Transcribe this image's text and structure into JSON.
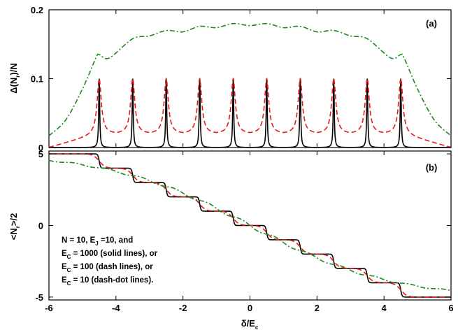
{
  "chart_data": [
    {
      "type": "line",
      "panel_label": "(a)",
      "ylabel_main": "Δ(N",
      "ylabel_sub": "r",
      "ylabel_tail": ")/N",
      "xlim": [
        -6,
        6
      ],
      "ylim": [
        0,
        0.2
      ],
      "yticks": [
        "0",
        "0.1",
        "0.2"
      ],
      "peak_positions": [
        -4.5,
        -3.5,
        -2.5,
        -1.5,
        -0.5,
        0.5,
        1.5,
        2.5,
        3.5,
        4.5
      ],
      "series": [
        {
          "style": "solid",
          "color": "#000000",
          "peak_height": 0.1,
          "baseline": 0.0
        },
        {
          "style": "dash",
          "color": "#e41a1c",
          "peak_height": 0.1,
          "baseline": 0.02
        },
        {
          "style": "dash-dot",
          "color": "#1b8a1b",
          "x": [
            -6,
            -5.5,
            -5,
            -4.6,
            -4.5,
            -4.2,
            -3.5,
            -3,
            -2.5,
            -2,
            -1.5,
            -1,
            -0.5,
            0,
            0.5,
            1,
            1.5,
            2,
            2.5,
            3,
            3.5,
            4.2,
            4.5,
            4.6,
            5,
            5.5,
            6
          ],
          "y": [
            0.017,
            0.04,
            0.085,
            0.13,
            0.135,
            0.13,
            0.158,
            0.162,
            0.17,
            0.168,
            0.176,
            0.174,
            0.18,
            0.177,
            0.18,
            0.174,
            0.176,
            0.168,
            0.17,
            0.162,
            0.158,
            0.13,
            0.135,
            0.13,
            0.085,
            0.04,
            0.017
          ]
        }
      ]
    },
    {
      "type": "line",
      "panel_label": "(b)",
      "ylabel_main": "<N",
      "ylabel_sub": "r",
      "ylabel_tail": ">/2",
      "xlabel_main": "δ/E",
      "xlabel_sub": "c",
      "xlim": [
        -6,
        6
      ],
      "ylim": [
        -5.2,
        5.2
      ],
      "yticks": [
        "-5",
        "0",
        "5"
      ],
      "xticks": [
        "-6",
        "-4",
        "-2",
        "0",
        "2",
        "4",
        "6"
      ],
      "step_positions": [
        -4.5,
        -3.5,
        -2.5,
        -1.5,
        -0.5,
        0.5,
        1.5,
        2.5,
        3.5,
        4.5
      ],
      "series": [
        {
          "style": "solid",
          "color": "#000000",
          "step_width": 0.02
        },
        {
          "style": "dash",
          "color": "#e41a1c",
          "step_width": 0.09
        },
        {
          "style": "dash-dot",
          "color": "#1b8a1b",
          "trend": "smooth"
        }
      ],
      "annotation": [
        {
          "parts": [
            [
              "N = 10, E",
              ""
            ],
            [
              "J",
              "sub"
            ],
            [
              " =10, and",
              ""
            ]
          ]
        },
        {
          "parts": [
            [
              "E",
              ""
            ],
            [
              "C",
              "sub"
            ],
            [
              " = 1000 (solid lines), or",
              ""
            ]
          ]
        },
        {
          "parts": [
            [
              "E",
              ""
            ],
            [
              "C",
              "sub"
            ],
            [
              " = 100 (dash lines), or",
              ""
            ]
          ]
        },
        {
          "parts": [
            [
              "E",
              ""
            ],
            [
              "C",
              "sub"
            ],
            [
              " = 10 (dash-dot lines).",
              ""
            ]
          ]
        }
      ]
    }
  ]
}
